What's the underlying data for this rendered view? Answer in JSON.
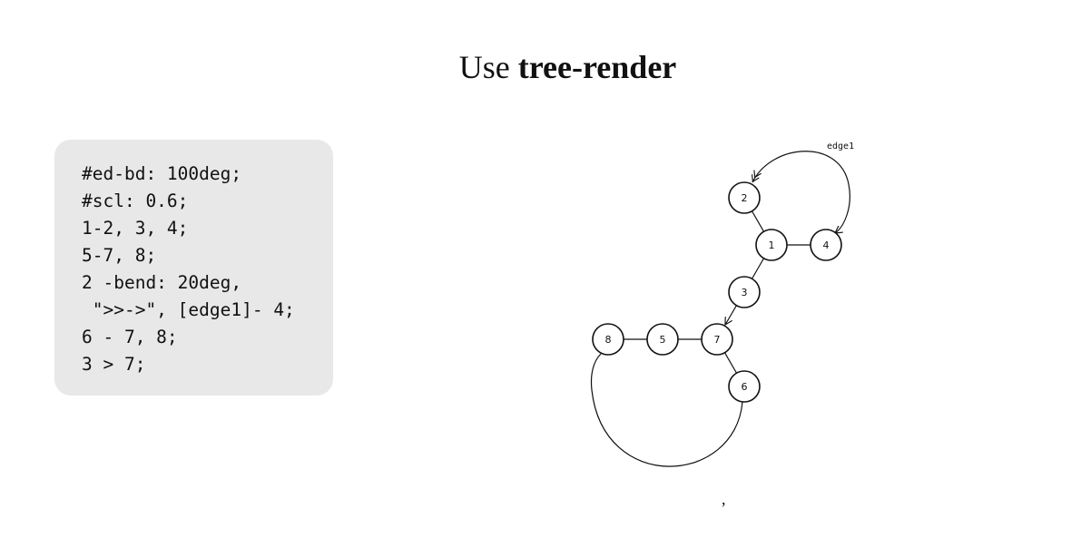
{
  "title": {
    "prefix": "Use ",
    "emphasis": "tree-render"
  },
  "code": {
    "lines": [
      "#ed-bd: 100deg;",
      "#scl: 0.6;",
      "1-2, 3, 4;",
      "5-7, 8;",
      "2 -bend: 20deg,",
      " \">>->\", [edge1]- 4;",
      "6 - 7, 8;",
      "3 > 7;"
    ]
  },
  "diagram": {
    "nodes": [
      {
        "id": "2",
        "label": "2"
      },
      {
        "id": "1",
        "label": "1"
      },
      {
        "id": "4",
        "label": "4"
      },
      {
        "id": "3",
        "label": "3"
      },
      {
        "id": "8",
        "label": "8"
      },
      {
        "id": "5",
        "label": "5"
      },
      {
        "id": "7",
        "label": "7"
      },
      {
        "id": "6",
        "label": "6"
      }
    ],
    "edges": [
      {
        "from": "1",
        "to": "2",
        "style": "plain"
      },
      {
        "from": "1",
        "to": "3",
        "style": "plain"
      },
      {
        "from": "1",
        "to": "4",
        "style": "plain"
      },
      {
        "from": "5",
        "to": "7",
        "style": "plain"
      },
      {
        "from": "5",
        "to": "8",
        "style": "plain"
      },
      {
        "from": "6",
        "to": "7",
        "style": "plain"
      },
      {
        "from": "6",
        "to": "8",
        "style": "bent"
      },
      {
        "from": "2",
        "to": "4",
        "style": "bent-double-arrow",
        "label": "edge1"
      },
      {
        "from": "3",
        "to": "7",
        "style": "arrow"
      }
    ]
  },
  "footer": {
    "trailing": ","
  }
}
